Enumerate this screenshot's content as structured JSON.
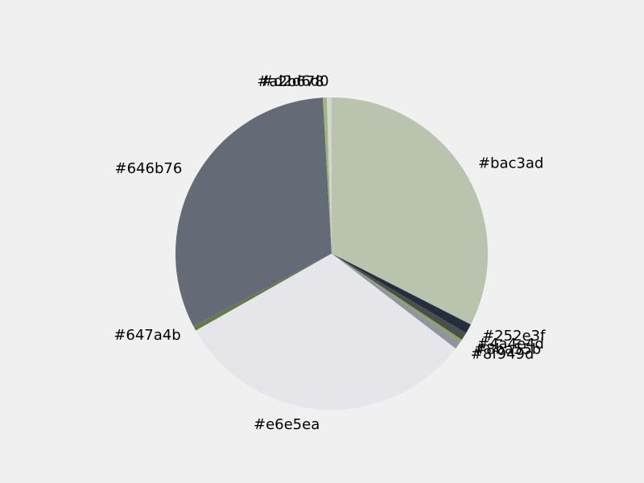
{
  "chart_data": {
    "type": "pie",
    "title": "",
    "labels": [
      "#bac3ad",
      "#252e3f",
      "#4a4e4d",
      "#8ba55b",
      "#8f949d",
      "#e6e5ea",
      "#647a4b",
      "#646b76",
      "#a2b678",
      "#d2d6d0"
    ],
    "values": [
      32.5,
      1.0,
      0.8,
      0.3,
      0.8,
      31.4,
      0.5,
      31.8,
      0.4,
      0.5
    ],
    "colors": [
      "#bac3ad",
      "#252e3f",
      "#4a4e4d",
      "#8ba55b",
      "#8f949d",
      "#e6e5ea",
      "#647a4b",
      "#646b76",
      "#a2b678",
      "#d2d6d0"
    ],
    "start_angle_deg": 90,
    "direction": "clockwise",
    "legend": "none"
  }
}
